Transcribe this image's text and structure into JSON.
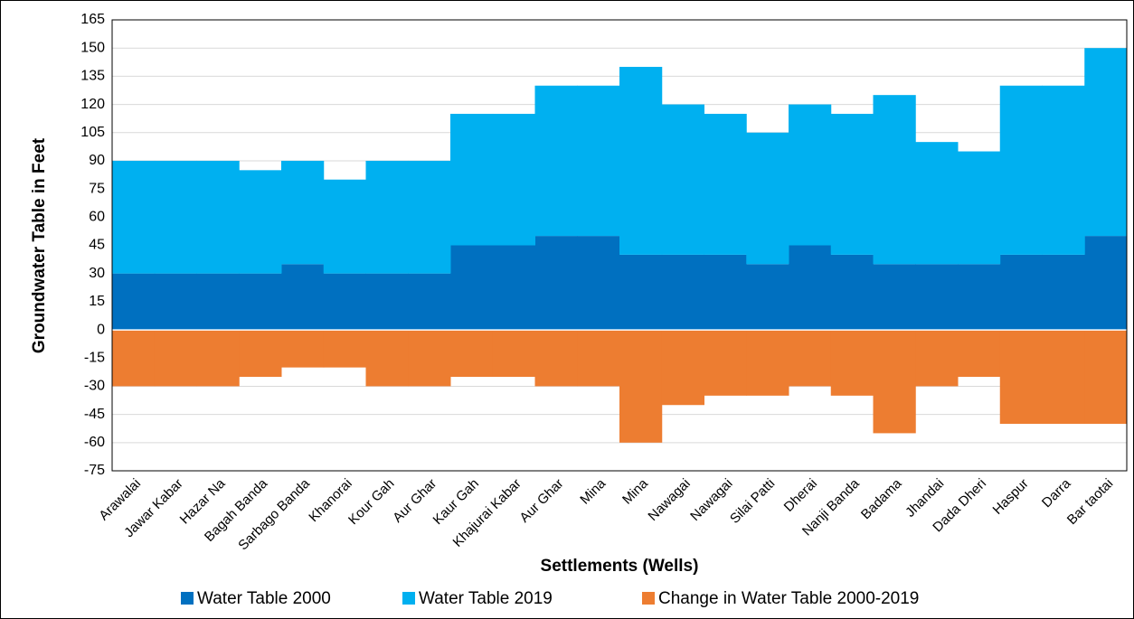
{
  "chart_data": {
    "type": "stacked-step-area",
    "x_label": "Settlements (Wells)",
    "y_label": "Groundwater Table in Feet",
    "categories": [
      "Arawalai",
      "Jawar Kabar",
      "Hazar Na",
      "Bagah Banda",
      "Sarbago Banda",
      "Khanorai",
      "Kour Gah",
      "Aur Ghar",
      "Kaur Gah",
      "Khajurai Kabar",
      "Aur Ghar",
      "Mina",
      "Mina",
      "Nawagai",
      "Nawagai",
      "Silai Patti",
      "Dherai",
      "Nanji Banda",
      "Badama",
      "Jhandai",
      "Dada Dheri",
      "Haspur",
      "Darra",
      "Bar taotai"
    ],
    "series": [
      {
        "name": "Water Table 2000",
        "color": "#0070c0",
        "values": [
          30,
          30,
          30,
          30,
          35,
          30,
          30,
          30,
          45,
          45,
          50,
          50,
          40,
          40,
          40,
          35,
          45,
          40,
          35,
          35,
          35,
          40,
          40,
          50
        ]
      },
      {
        "name": "Water Table 2019",
        "color": "#00b0f0",
        "values": [
          60,
          60,
          60,
          55,
          55,
          50,
          60,
          60,
          70,
          70,
          80,
          80,
          100,
          80,
          75,
          70,
          75,
          75,
          90,
          65,
          60,
          90,
          90,
          100
        ]
      },
      {
        "name": "Change in Water Table 2000-2019",
        "color": "#ed7d31",
        "values": [
          -30,
          -30,
          -30,
          -25,
          -20,
          -20,
          -30,
          -30,
          -25,
          -25,
          -30,
          -30,
          -60,
          -40,
          -35,
          -35,
          -30,
          -35,
          -55,
          -30,
          -25,
          -50,
          -50,
          -50
        ]
      }
    ],
    "ylim": [
      -75,
      165
    ],
    "yticks": [
      -75,
      -60,
      -45,
      -30,
      -15,
      0,
      15,
      30,
      45,
      60,
      75,
      90,
      105,
      120,
      135,
      150,
      165
    ],
    "grid": true,
    "legend": "bottom"
  }
}
